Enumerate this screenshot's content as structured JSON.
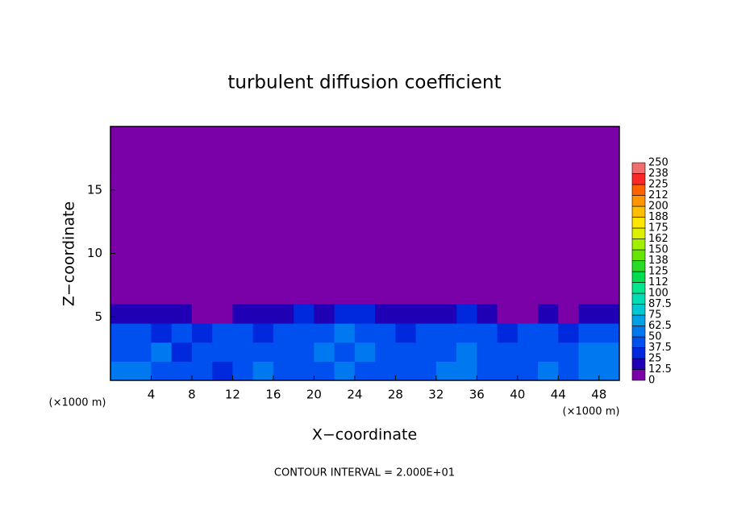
{
  "chart_data": {
    "type": "contour",
    "title": "turbulent diffusion coefficient",
    "xlabel": "X−coordinate",
    "ylabel": "Z−coordinate",
    "x_unit": "(×1000 m)",
    "x_unit_right": "(×1000 m)",
    "footer": "CONTOUR INTERVAL = 2.000E+01",
    "xlim": [
      0,
      50
    ],
    "ylim": [
      0,
      20
    ],
    "xticks": [
      4,
      8,
      12,
      16,
      20,
      24,
      28,
      32,
      36,
      40,
      44,
      48
    ],
    "yticks": [
      5,
      10,
      15
    ],
    "x": [
      1,
      3,
      5,
      7,
      9,
      11,
      13,
      15,
      17,
      19,
      21,
      23,
      25,
      27,
      29,
      31,
      33,
      35,
      37,
      39,
      41,
      43,
      45,
      47,
      49
    ],
    "y": [
      0.75,
      2.25,
      3.75,
      5.25
    ],
    "values": [
      [
        55,
        50,
        45,
        40,
        48,
        35,
        45,
        50,
        42,
        38,
        45,
        52,
        48,
        40,
        45,
        42,
        50,
        55,
        48,
        40,
        45,
        50,
        48,
        55,
        60
      ],
      [
        45,
        40,
        50,
        35,
        42,
        45,
        38,
        45,
        48,
        40,
        50,
        45,
        55,
        45,
        40,
        45,
        42,
        50,
        45,
        38,
        42,
        45,
        40,
        50,
        55
      ],
      [
        38,
        42,
        35,
        40,
        30,
        38,
        42,
        35,
        45,
        40,
        42,
        50,
        48,
        38,
        35,
        40,
        45,
        48,
        40,
        35,
        38,
        40,
        35,
        38,
        40
      ],
      [
        15,
        20,
        18,
        22,
        12,
        8,
        15,
        20,
        18,
        25,
        22,
        28,
        30,
        18,
        15,
        20,
        22,
        25,
        20,
        8,
        12,
        18,
        10,
        15,
        18
      ]
    ],
    "colorbar": {
      "levels": [
        0,
        12.5,
        25,
        37.5,
        50,
        62.5,
        75,
        87.5,
        100,
        {
          "value": 112.5,
          "label": "112"
        },
        125,
        {
          "value": 137.5,
          "label": "138"
        },
        150,
        {
          "value": 162.5,
          "label": "162"
        },
        175,
        {
          "value": 187.5,
          "label": "188"
        },
        200,
        {
          "value": 212.5,
          "label": "212"
        },
        225,
        {
          "value": 237.5,
          "label": "238"
        },
        250
      ],
      "colors": [
        "#7a00a8",
        "#2000b4",
        "#0028dc",
        "#0050f0",
        "#0078f0",
        "#00a0e6",
        "#00c8d2",
        "#00dcb4",
        "#00e68c",
        "#00dc50",
        "#28dc28",
        "#64e600",
        "#a0f000",
        "#dcf000",
        "#ffe600",
        "#ffbe00",
        "#ff9600",
        "#ff6400",
        "#ff2828",
        "#f06e6e"
      ]
    }
  }
}
